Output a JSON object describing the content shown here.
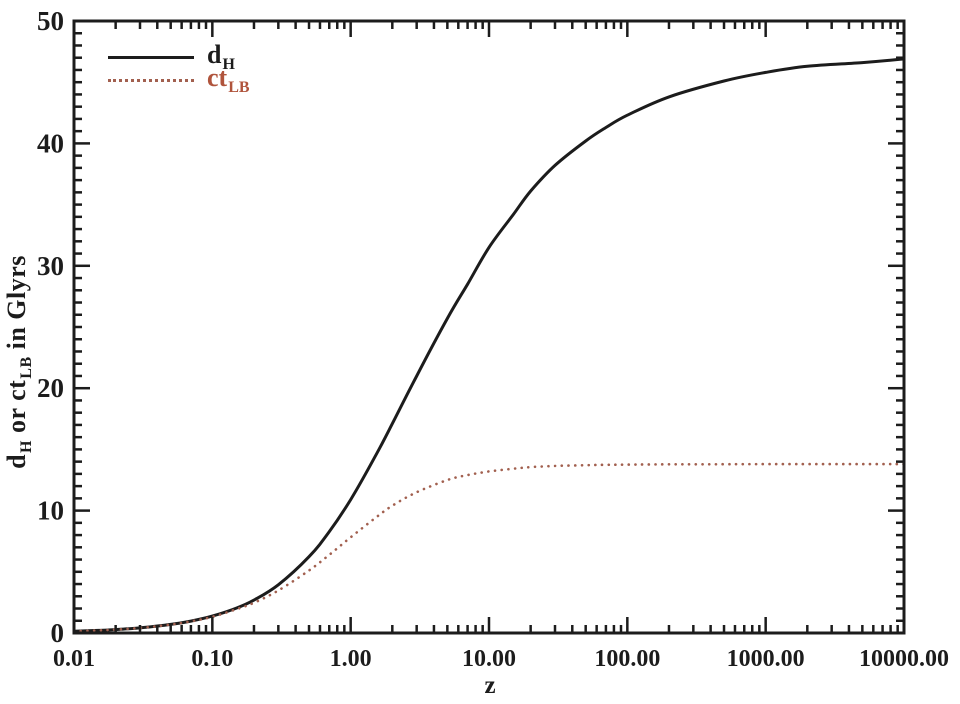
{
  "page": {
    "background": "#ffffff",
    "ink_color": "#1c1c1c"
  },
  "chart_data": {
    "type": "line",
    "title": "",
    "xlabel": "z",
    "ylabel": "d_H or ct_LB in Glyrs",
    "ylabel_parts": {
      "p0": "d",
      "s0": "H",
      "p1": " or ct",
      "s1": "LB",
      "p2": " in Glyrs"
    },
    "x_scale": "log",
    "xlim": [
      0.01,
      10000
    ],
    "ylim": [
      0,
      50
    ],
    "x_major_ticks": [
      0.01,
      0.1,
      1,
      10,
      100,
      1000,
      10000
    ],
    "x_tick_labels": [
      "0.01",
      "0.10",
      "1.00",
      "10.00",
      "100.00",
      "1000.00",
      "10000.00"
    ],
    "y_major_ticks": [
      0,
      10,
      20,
      30,
      40,
      50
    ],
    "y_tick_labels": [
      "0",
      "10",
      "20",
      "30",
      "40",
      "50"
    ],
    "y_minor_step": 1,
    "grid": false,
    "legend_position": "top-left-inside",
    "axis_color": "#1c1c1c",
    "x": [
      0.01,
      0.015,
      0.02,
      0.03,
      0.05,
      0.07,
      0.1,
      0.15,
      0.2,
      0.3,
      0.5,
      0.7,
      1,
      1.5,
      2,
      3,
      5,
      7,
      10,
      15,
      20,
      30,
      50,
      70,
      100,
      200,
      500,
      1000,
      2000,
      5000,
      10000
    ],
    "series": [
      {
        "name": "d_H",
        "label_main": "d",
        "label_sub": "H",
        "line_style": "solid",
        "color": "#1c1c1c",
        "text_color": "#1c1c1c",
        "values": [
          0.14,
          0.21,
          0.28,
          0.42,
          0.7,
          0.97,
          1.38,
          2.04,
          2.69,
          3.94,
          6.23,
          8.27,
          10.9,
          14.4,
          17.1,
          21.0,
          25.7,
          28.5,
          31.5,
          34.2,
          36.1,
          38.2,
          40.2,
          41.3,
          42.3,
          43.8,
          45.1,
          45.8,
          46.3,
          46.6,
          46.9
        ]
      },
      {
        "name": "ct_LB",
        "label_main": "ct",
        "label_sub": "LB",
        "line_style": "dotted",
        "color": "#a2604f",
        "text_color": "#b0543c",
        "values": [
          0.14,
          0.21,
          0.28,
          0.41,
          0.69,
          0.95,
          1.32,
          1.95,
          2.47,
          3.47,
          5.11,
          6.38,
          7.82,
          9.38,
          10.4,
          11.5,
          12.5,
          12.9,
          13.2,
          13.42,
          13.55,
          13.65,
          13.71,
          13.74,
          13.76,
          13.78,
          13.79,
          13.8,
          13.8,
          13.8,
          13.8
        ]
      }
    ]
  }
}
